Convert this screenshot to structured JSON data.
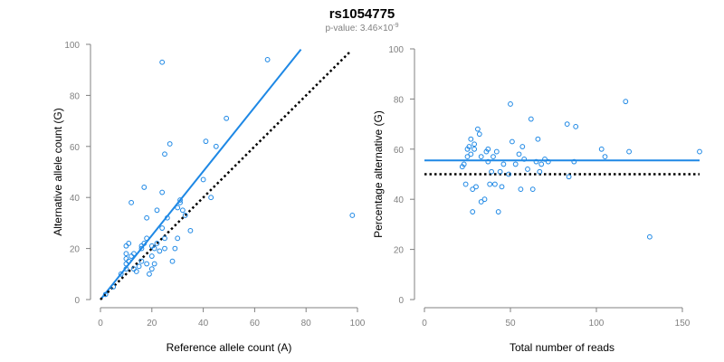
{
  "title": "rs1054775",
  "subtitle": {
    "prefix": "p-value: 3.46×10",
    "exponent": "-9"
  },
  "colors": {
    "points": "#1E88E5",
    "fit": "#1E88E5",
    "reference": "#000000",
    "axis": "#808080"
  },
  "chart_data": [
    {
      "type": "scatter",
      "xlabel": "Reference allele count (A)",
      "ylabel": "Alternative allele count (G)",
      "xlim": [
        0,
        100
      ],
      "ylim": [
        0,
        100
      ],
      "xticks": [
        0,
        20,
        40,
        60,
        80,
        100
      ],
      "yticks": [
        0,
        20,
        40,
        60,
        80,
        100
      ],
      "grid": false,
      "points": [
        [
          2,
          2
        ],
        [
          5,
          5
        ],
        [
          8,
          10
        ],
        [
          10,
          12
        ],
        [
          10,
          14
        ],
        [
          10,
          16
        ],
        [
          10,
          18
        ],
        [
          10,
          21
        ],
        [
          11,
          22
        ],
        [
          11,
          15
        ],
        [
          12,
          17
        ],
        [
          12,
          38
        ],
        [
          13,
          18
        ],
        [
          13,
          12
        ],
        [
          14,
          11
        ],
        [
          15,
          13
        ],
        [
          16,
          20
        ],
        [
          16,
          21
        ],
        [
          16,
          15
        ],
        [
          17,
          44
        ],
        [
          17,
          22
        ],
        [
          18,
          24
        ],
        [
          18,
          32
        ],
        [
          18,
          14
        ],
        [
          19,
          10
        ],
        [
          20,
          21
        ],
        [
          20,
          12
        ],
        [
          20,
          17
        ],
        [
          21,
          20
        ],
        [
          21,
          14
        ],
        [
          22,
          22
        ],
        [
          22,
          35
        ],
        [
          23,
          19
        ],
        [
          24,
          93
        ],
        [
          24,
          42
        ],
        [
          24,
          28
        ],
        [
          25,
          20
        ],
        [
          25,
          57
        ],
        [
          25,
          24
        ],
        [
          26,
          32
        ],
        [
          27,
          61
        ],
        [
          28,
          15
        ],
        [
          29,
          20
        ],
        [
          30,
          36
        ],
        [
          30,
          24
        ],
        [
          31,
          38
        ],
        [
          31,
          39
        ],
        [
          32,
          35
        ],
        [
          33,
          33
        ],
        [
          35,
          27
        ],
        [
          40,
          47
        ],
        [
          41,
          62
        ],
        [
          43,
          40
        ],
        [
          45,
          60
        ],
        [
          49,
          71
        ],
        [
          65,
          94
        ],
        [
          98,
          33
        ]
      ],
      "lines": [
        {
          "kind": "fit",
          "style": "solid",
          "x": [
            0,
            78
          ],
          "y": [
            0,
            98
          ]
        },
        {
          "kind": "reference",
          "style": "dotted",
          "x": [
            0,
            97
          ],
          "y": [
            0,
            97
          ]
        }
      ]
    },
    {
      "type": "scatter",
      "xlabel": "Total number of reads",
      "ylabel": "Percentage alternative (G)",
      "xlim": [
        0,
        160
      ],
      "ylim": [
        0,
        100
      ],
      "xticks": [
        0,
        50,
        100,
        150
      ],
      "yticks": [
        0,
        20,
        40,
        60,
        80,
        100
      ],
      "grid": false,
      "points": [
        [
          22,
          53
        ],
        [
          23,
          54
        ],
        [
          24,
          46
        ],
        [
          25,
          60
        ],
        [
          25,
          57
        ],
        [
          26,
          61
        ],
        [
          27,
          58
        ],
        [
          27,
          64
        ],
        [
          28,
          35
        ],
        [
          28,
          44
        ],
        [
          29,
          60
        ],
        [
          29,
          62
        ],
        [
          30,
          45
        ],
        [
          31,
          68
        ],
        [
          32,
          66
        ],
        [
          33,
          57
        ],
        [
          33,
          39
        ],
        [
          35,
          40
        ],
        [
          36,
          59
        ],
        [
          37,
          60
        ],
        [
          37,
          55
        ],
        [
          38,
          46
        ],
        [
          39,
          51
        ],
        [
          40,
          57
        ],
        [
          41,
          46
        ],
        [
          42,
          59
        ],
        [
          43,
          35
        ],
        [
          44,
          51
        ],
        [
          45,
          45
        ],
        [
          46,
          54
        ],
        [
          49,
          50
        ],
        [
          50,
          78
        ],
        [
          51,
          63
        ],
        [
          53,
          54
        ],
        [
          55,
          58
        ],
        [
          56,
          44
        ],
        [
          57,
          61
        ],
        [
          58,
          56
        ],
        [
          60,
          52
        ],
        [
          62,
          72
        ],
        [
          63,
          44
        ],
        [
          65,
          55
        ],
        [
          66,
          64
        ],
        [
          67,
          51
        ],
        [
          68,
          54
        ],
        [
          70,
          56
        ],
        [
          72,
          55
        ],
        [
          83,
          70
        ],
        [
          84,
          49
        ],
        [
          87,
          55
        ],
        [
          88,
          69
        ],
        [
          103,
          60
        ],
        [
          105,
          57
        ],
        [
          117,
          79
        ],
        [
          119,
          59
        ],
        [
          131,
          25
        ],
        [
          160,
          59
        ]
      ],
      "lines": [
        {
          "kind": "fit",
          "style": "solid",
          "x": [
            0,
            160
          ],
          "y": [
            55.5,
            55.5
          ]
        },
        {
          "kind": "reference",
          "style": "dotted",
          "x": [
            0,
            160
          ],
          "y": [
            50,
            50
          ]
        }
      ]
    }
  ]
}
